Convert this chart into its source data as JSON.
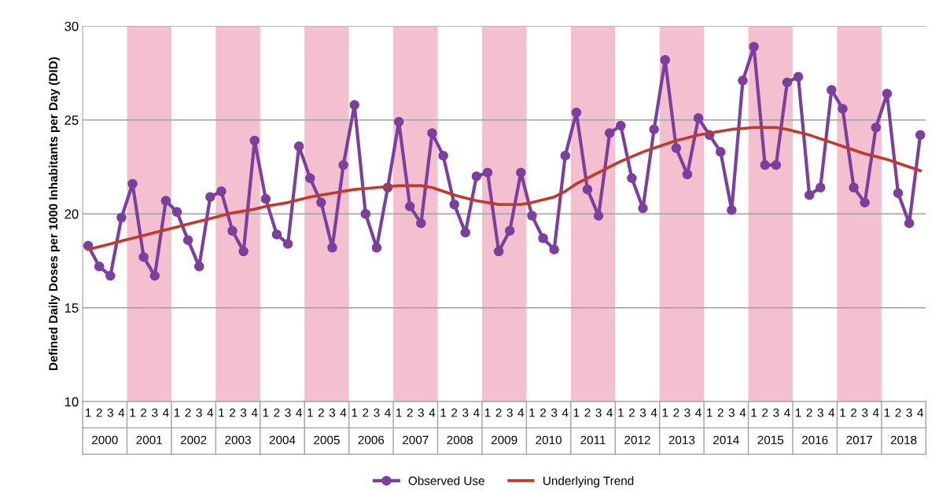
{
  "chart_data": {
    "type": "line",
    "ylabel": "Defined Daily Doses per 1000 Inhabitants per Day (DID)",
    "categories": [
      "1",
      "2",
      "3",
      "4",
      "1",
      "2",
      "3",
      "4",
      "1",
      "2",
      "3",
      "4",
      "1",
      "2",
      "3",
      "4",
      "1",
      "2",
      "3",
      "4",
      "1",
      "2",
      "3",
      "4",
      "1",
      "2",
      "3",
      "4",
      "1",
      "2",
      "3",
      "4",
      "1",
      "2",
      "3",
      "4",
      "1",
      "2",
      "3",
      "4",
      "1",
      "2",
      "3",
      "4",
      "1",
      "2",
      "3",
      "4",
      "1",
      "2",
      "3",
      "4",
      "1",
      "2",
      "3",
      "4",
      "1",
      "2",
      "3",
      "4",
      "1",
      "2",
      "3",
      "4",
      "1",
      "2",
      "3",
      "4",
      "1",
      "2",
      "3",
      "4",
      "1",
      "2",
      "3",
      "4"
    ],
    "annotations": [
      "2000",
      "2001",
      "2002",
      "2003",
      "2004",
      "2005",
      "2006",
      "2007",
      "2008",
      "2009",
      "2010",
      "2011",
      "2012",
      "2013",
      "2014",
      "2015",
      "2016",
      "2017",
      "2018"
    ],
    "series": [
      {
        "name": "Observed Use",
        "color": "#7b3f9e",
        "marker": "circle",
        "values": [
          18.3,
          17.2,
          16.7,
          19.8,
          21.6,
          17.7,
          16.7,
          20.7,
          20.1,
          18.6,
          17.2,
          20.9,
          21.2,
          19.1,
          18.0,
          23.9,
          20.8,
          18.9,
          18.4,
          23.6,
          21.9,
          20.6,
          18.2,
          22.6,
          25.8,
          20.0,
          18.2,
          21.4,
          24.9,
          20.4,
          19.5,
          24.3,
          23.1,
          20.5,
          19.0,
          22.0,
          22.2,
          18.0,
          19.1,
          22.2,
          19.9,
          18.7,
          18.1,
          23.1,
          25.4,
          21.3,
          19.9,
          24.3,
          24.7,
          21.9,
          20.3,
          24.5,
          28.2,
          23.5,
          22.1,
          25.1,
          24.2,
          23.3,
          20.2,
          27.1,
          28.9,
          22.6,
          22.6,
          27.0,
          27.3,
          21.0,
          21.4,
          26.6,
          25.6,
          21.4,
          20.6,
          24.6,
          26.4,
          21.1,
          19.5,
          24.2
        ]
      },
      {
        "name": "Underlying Trend",
        "color": "#c0392b",
        "marker": "none",
        "values": [
          18.1,
          18.25,
          18.4,
          18.55,
          18.7,
          18.85,
          19.0,
          19.15,
          19.3,
          19.45,
          19.6,
          19.75,
          19.9,
          20.05,
          20.15,
          20.25,
          20.4,
          20.5,
          20.6,
          20.75,
          20.9,
          21.0,
          21.1,
          21.2,
          21.3,
          21.35,
          21.4,
          21.45,
          21.5,
          21.5,
          21.5,
          21.4,
          21.2,
          21.0,
          20.85,
          20.7,
          20.6,
          20.5,
          20.5,
          20.5,
          20.6,
          20.75,
          20.9,
          21.2,
          21.6,
          21.9,
          22.2,
          22.5,
          22.8,
          23.05,
          23.3,
          23.5,
          23.7,
          23.9,
          24.05,
          24.2,
          24.3,
          24.4,
          24.5,
          24.55,
          24.6,
          24.6,
          24.6,
          24.5,
          24.35,
          24.2,
          24.0,
          23.8,
          23.6,
          23.4,
          23.2,
          23.05,
          22.9,
          22.7,
          22.5,
          22.3
        ]
      }
    ],
    "ylim": [
      10,
      30
    ],
    "yticks": [
      10,
      15,
      20,
      25,
      30
    ],
    "grid": "y",
    "legend": "bottom",
    "line_style": "solid"
  }
}
